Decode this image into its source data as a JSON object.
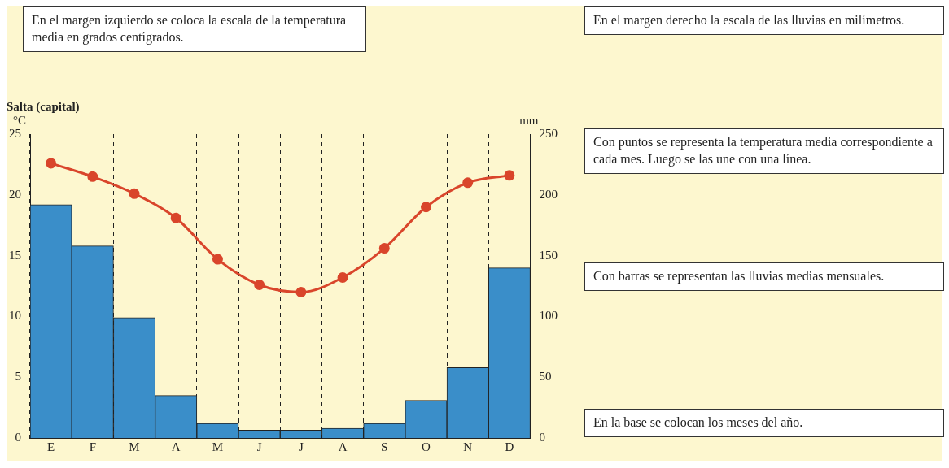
{
  "chart_data": {
    "type": "bar",
    "title": "Salta (capital)",
    "ylabel": "°C",
    "y2label": "mm",
    "categories": [
      "E",
      "F",
      "M",
      "A",
      "M",
      "J",
      "J",
      "A",
      "S",
      "O",
      "N",
      "D"
    ],
    "series": [
      {
        "type": "bar",
        "axis": "y2",
        "color": "#3a8ec9",
        "values": [
          192,
          158,
          99,
          35,
          12,
          6.5,
          6.5,
          8,
          12,
          31,
          58,
          140
        ]
      },
      {
        "type": "line",
        "axis": "y",
        "color": "#d9452b",
        "marker": "circle",
        "values": [
          22.6,
          21.5,
          20.1,
          18.1,
          14.7,
          12.6,
          12.0,
          13.2,
          15.6,
          19.0,
          21.0,
          21.6
        ]
      }
    ],
    "ylim": [
      0,
      25
    ],
    "yticks": [
      0,
      5,
      10,
      15,
      20,
      25
    ],
    "y2lim": [
      0,
      250
    ],
    "y2ticks": [
      0,
      50,
      100,
      150,
      200,
      250
    ],
    "grid": "x",
    "legend": false,
    "annotations": [
      "En el margen izquierdo se coloca la escala de la temperatura media en grados centígrados.",
      "En el margen derecho la escala de las lluvias en milímetros.",
      "Con puntos se representa la temperatura media correspondiente a cada mes. Luego se las une con una línea.",
      "Con barras se representan las lluvias medias mensuales.",
      "En la base se colocan los meses del año."
    ]
  }
}
